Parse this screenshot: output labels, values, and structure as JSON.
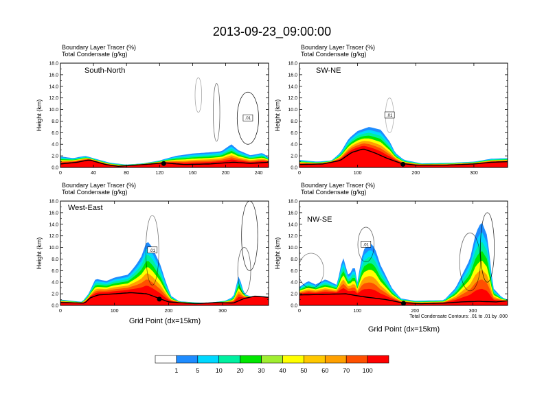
{
  "title": "2013-09-23_09:00:00",
  "colors": {
    "levels": [
      "#ffffff",
      "#1e8cff",
      "#00d8ff",
      "#00f0a0",
      "#00e600",
      "#a0ee30",
      "#ffff00",
      "#ffc800",
      "#ffa000",
      "#ff5000",
      "#ff0000"
    ],
    "contour": "#000000",
    "terrain": "#000000"
  },
  "colorbar": {
    "labels": [
      "1",
      "5",
      "10",
      "20",
      "30",
      "40",
      "50",
      "60",
      "70",
      "100"
    ]
  },
  "footnote": "Total Condensate Contours: .01 to .01 by .000",
  "chart_data": [
    {
      "type": "heatmap",
      "panel_label": "South-North",
      "header_line1": "Boundary Layer Tracer   (%)",
      "header_line2": "Total Condensate   (g/kg)",
      "ylabel": "Height (km)",
      "xlabel": "",
      "xlim": [
        0,
        252
      ],
      "ylim": [
        0,
        18
      ],
      "xticks": [
        0,
        40,
        80,
        120,
        160,
        200,
        240
      ],
      "yticks": [
        "0.0",
        "2.0",
        "4.0",
        "6.0",
        "8.0",
        "10.0",
        "12.0",
        "14.0",
        "16.0",
        "18.0"
      ],
      "contour_label": ".01",
      "marker_x": 125,
      "terrain": [
        [
          0,
          0.6
        ],
        [
          20,
          0.9
        ],
        [
          35,
          1.3
        ],
        [
          55,
          0.5
        ],
        [
          70,
          0.2
        ],
        [
          90,
          0.4
        ],
        [
          110,
          0.6
        ],
        [
          125,
          0.8
        ],
        [
          150,
          0.5
        ],
        [
          180,
          0.6
        ],
        [
          210,
          0.9
        ],
        [
          230,
          0.7
        ],
        [
          252,
          0.9
        ]
      ],
      "tracer_top": [
        [
          0,
          1.9
        ],
        [
          15,
          1.6
        ],
        [
          30,
          2.0
        ],
        [
          45,
          1.4
        ],
        [
          60,
          0.8
        ],
        [
          80,
          0.5
        ],
        [
          100,
          0.7
        ],
        [
          120,
          1.2
        ],
        [
          140,
          2.0
        ],
        [
          160,
          2.4
        ],
        [
          180,
          2.6
        ],
        [
          195,
          2.8
        ],
        [
          207,
          4.0
        ],
        [
          215,
          3.0
        ],
        [
          230,
          2.1
        ],
        [
          245,
          2.5
        ],
        [
          252,
          1.7
        ]
      ],
      "cells": [
        [
          227,
          8.5,
          13,
          4.5,
          0.9
        ],
        [
          189,
          9.5,
          4,
          5,
          0.6
        ],
        [
          167,
          12.5,
          4,
          3,
          0.35
        ]
      ]
    },
    {
      "type": "heatmap",
      "panel_label": "SW-NE",
      "header_line1": "Boundary Layer Tracer   (%)",
      "header_line2": "Total Condensate   (g/kg)",
      "ylabel": "Height (km)",
      "xlabel": "",
      "xlim": [
        0,
        358
      ],
      "ylim": [
        0,
        18
      ],
      "xticks": [
        0,
        100,
        200,
        300
      ],
      "yticks": [
        "0.0",
        "2.0",
        "4.0",
        "6.0",
        "8.0",
        "10.0",
        "12.0",
        "14.0",
        "16.0",
        "18.0"
      ],
      "contour_label": ".01",
      "marker_x": 178,
      "terrain": [
        [
          0,
          0.5
        ],
        [
          40,
          0.6
        ],
        [
          70,
          1.2
        ],
        [
          90,
          2.6
        ],
        [
          110,
          3.2
        ],
        [
          130,
          2.5
        ],
        [
          150,
          1.6
        ],
        [
          175,
          0.7
        ],
        [
          200,
          0.4
        ],
        [
          250,
          0.4
        ],
        [
          300,
          0.6
        ],
        [
          330,
          0.9
        ],
        [
          358,
          1.0
        ]
      ],
      "tracer_top": [
        [
          0,
          1.3
        ],
        [
          30,
          1.0
        ],
        [
          55,
          1.2
        ],
        [
          70,
          2.5
        ],
        [
          85,
          5.0
        ],
        [
          100,
          6.3
        ],
        [
          120,
          7.0
        ],
        [
          140,
          6.5
        ],
        [
          155,
          4.5
        ],
        [
          165,
          2.5
        ],
        [
          180,
          1.3
        ],
        [
          210,
          0.7
        ],
        [
          260,
          0.8
        ],
        [
          300,
          1.0
        ],
        [
          330,
          1.5
        ],
        [
          358,
          1.6
        ]
      ],
      "cells": [
        [
          155,
          9.0,
          7,
          3,
          0.3
        ]
      ]
    },
    {
      "type": "heatmap",
      "panel_label": "West-East",
      "header_line1": "Boundary Layer Tracer   (%)",
      "header_line2": "Total Condensate   (g/kg)",
      "ylabel": "Height (km)",
      "xlabel": "Grid Point (dx=15km)",
      "xlim": [
        0,
        385
      ],
      "ylim": [
        0,
        18
      ],
      "xticks": [
        0,
        100,
        200,
        300
      ],
      "yticks": [
        "0.0",
        "2.0",
        "4.0",
        "6.0",
        "8.0",
        "10.0",
        "12.0",
        "14.0",
        "16.0",
        "18.0"
      ],
      "contour_label": ".01",
      "marker_x": 183,
      "terrain": [
        [
          0,
          0.5
        ],
        [
          45,
          0.4
        ],
        [
          55,
          1.3
        ],
        [
          70,
          1.8
        ],
        [
          100,
          2.0
        ],
        [
          130,
          2.2
        ],
        [
          160,
          2.0
        ],
        [
          180,
          1.3
        ],
        [
          200,
          0.6
        ],
        [
          250,
          0.3
        ],
        [
          290,
          0.5
        ],
        [
          320,
          0.4
        ],
        [
          340,
          1.2
        ],
        [
          360,
          1.6
        ],
        [
          385,
          1.4
        ]
      ],
      "tracer_top": [
        [
          0,
          1.0
        ],
        [
          40,
          0.6
        ],
        [
          52,
          2.0
        ],
        [
          65,
          4.6
        ],
        [
          85,
          4.2
        ],
        [
          100,
          4.8
        ],
        [
          125,
          5.3
        ],
        [
          140,
          7.0
        ],
        [
          150,
          8.5
        ],
        [
          160,
          11.2
        ],
        [
          170,
          10.0
        ],
        [
          185,
          7.0
        ],
        [
          195,
          4.0
        ],
        [
          205,
          1.6
        ],
        [
          220,
          0.7
        ],
        [
          270,
          0.4
        ],
        [
          305,
          0.8
        ],
        [
          320,
          1.5
        ],
        [
          330,
          5.2
        ],
        [
          340,
          2.0
        ],
        [
          360,
          1.2
        ],
        [
          385,
          1.0
        ]
      ],
      "cells": [
        [
          170,
          9.5,
          12,
          6,
          0.55
        ],
        [
          350,
          12.0,
          15,
          6,
          0.8
        ],
        [
          340,
          6.0,
          12,
          4,
          0.6
        ]
      ]
    },
    {
      "type": "heatmap",
      "panel_label": "NW-SE",
      "header_line1": "Boundary Layer Tracer   (%)",
      "header_line2": "Total Condensate   (g/kg)",
      "ylabel": "Height (km)",
      "xlabel": "Grid Point (dx=15km)",
      "xlim": [
        0,
        360
      ],
      "ylim": [
        0,
        18
      ],
      "xticks": [
        0,
        100,
        200,
        300
      ],
      "yticks": [
        "0.0",
        "2.0",
        "4.0",
        "6.0",
        "8.0",
        "10.0",
        "12.0",
        "14.0",
        "16.0",
        "18.0"
      ],
      "contour_label": ".01",
      "marker_x": 180,
      "terrain": [
        [
          0,
          1.8
        ],
        [
          40,
          1.9
        ],
        [
          80,
          2.0
        ],
        [
          110,
          1.5
        ],
        [
          150,
          1.0
        ],
        [
          175,
          0.5
        ],
        [
          210,
          0.3
        ],
        [
          250,
          0.4
        ],
        [
          280,
          0.6
        ],
        [
          310,
          0.7
        ],
        [
          340,
          0.6
        ],
        [
          360,
          0.8
        ]
      ],
      "tracer_top": [
        [
          0,
          3.2
        ],
        [
          15,
          4.2
        ],
        [
          28,
          3.6
        ],
        [
          45,
          4.5
        ],
        [
          65,
          3.5
        ],
        [
          75,
          8.5
        ],
        [
          85,
          5.0
        ],
        [
          95,
          7.0
        ],
        [
          100,
          4.0
        ],
        [
          110,
          9.5
        ],
        [
          122,
          10.8
        ],
        [
          130,
          10.0
        ],
        [
          140,
          7.0
        ],
        [
          160,
          3.0
        ],
        [
          175,
          1.2
        ],
        [
          200,
          0.8
        ],
        [
          250,
          0.9
        ],
        [
          270,
          3.0
        ],
        [
          285,
          6.0
        ],
        [
          295,
          8.0
        ],
        [
          305,
          12.5
        ],
        [
          315,
          14.5
        ],
        [
          325,
          12.0
        ],
        [
          335,
          3.0
        ],
        [
          350,
          1.4
        ],
        [
          360,
          1.0
        ]
      ],
      "cells": [
        [
          115,
          10.5,
          14,
          3,
          0.6
        ],
        [
          295,
          7.5,
          18,
          5,
          0.6
        ],
        [
          325,
          10.0,
          12,
          6,
          0.8
        ],
        [
          20,
          6.0,
          22,
          3,
          0.5
        ]
      ]
    }
  ]
}
